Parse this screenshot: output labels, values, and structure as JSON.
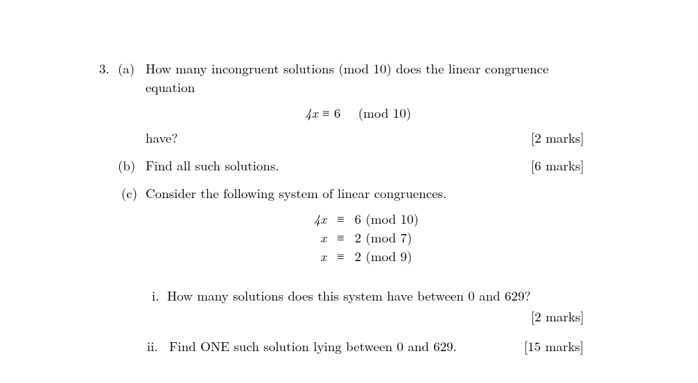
{
  "colors": {
    "text": "#000000",
    "background": "#ffffff"
  },
  "font": {
    "family": "Computer Modern / Times",
    "size_pt": 14
  },
  "question_number": "3.",
  "parts": {
    "a": {
      "label": "(a)",
      "line1": "How many incongruent solutions (mod 10) does the linear congruence",
      "line2": "equation",
      "equation": {
        "lhs": "4x",
        "rel": "≡",
        "rhs": "6",
        "mod": "(mod 10)"
      },
      "line3": "have?",
      "marks": "[2 marks]"
    },
    "b": {
      "label": "(b)",
      "text": "Find all such solutions.",
      "marks": "[6 marks]"
    },
    "c": {
      "label": "(c)",
      "text": "Consider the following system of linear congruences.",
      "system": [
        {
          "lhs": "4x",
          "rel": "≡",
          "rhs": "6",
          "mod": "(mod 10)"
        },
        {
          "lhs": "x",
          "rel": "≡",
          "rhs": "2",
          "mod": "(mod 7)"
        },
        {
          "lhs": "x",
          "rel": "≡",
          "rhs": "2",
          "mod": "(mod 9)"
        }
      ],
      "sub": {
        "i": {
          "label": "i.",
          "text": "How many solutions does this system have between 0 and 629?",
          "marks": "[2 marks]"
        },
        "ii": {
          "label": "ii.",
          "text": "Find ONE such solution lying between 0 and 629.",
          "marks": "[15 marks]"
        }
      }
    }
  }
}
